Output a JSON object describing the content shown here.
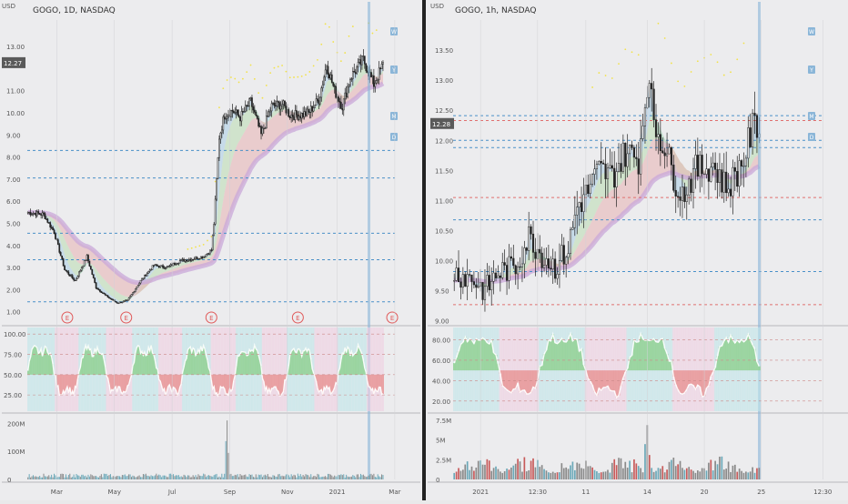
{
  "colors": {
    "background": "#ececee",
    "divider": "#222222",
    "candle": "#222222",
    "axis_text": "#555555",
    "dashed_blue": "#4a90c8",
    "dashed_red": "#e07070",
    "dashed_green": "#7ab87a",
    "ribbon_blue": "#a9cde6",
    "ribbon_green": "#b9dcb0",
    "ribbon_red": "#e8b3b3",
    "ribbon_purple": "#c9a8d8",
    "yellow_dots": "#f2e24a",
    "osc_green": "#8fcf8f",
    "osc_red": "#e79292",
    "osc_cyan": "#bfe6ea",
    "osc_line": "#ffffff",
    "earnings_marker": "#e05a5a",
    "price_label_bg": "#5a5a5a",
    "price_label_text": "#ffffff",
    "badge_blue": "#8bb6d8"
  },
  "chart_data": [
    {
      "type": "candlestick",
      "symbol_title": "GOGO, 1D, NASDAQ",
      "currency": "USD",
      "price_ticks": [
        "13.00",
        "12.00",
        "11.00",
        "10.00",
        "9.00",
        "8.00",
        "7.00",
        "6.00",
        "5.00",
        "4.00",
        "3.00",
        "2.00",
        "1.00"
      ],
      "price_tick_values": [
        13,
        12,
        11,
        10,
        9,
        8,
        7,
        6,
        5,
        4,
        3,
        2,
        1
      ],
      "ylim": [
        0.45,
        14.2
      ],
      "last_price": "12.27",
      "last_price_value": 12.27,
      "time_labels": [
        "Mar",
        "May",
        "Jul",
        "Sep",
        "Nov",
        "2021",
        "Mar"
      ],
      "time_label_index": [
        22,
        66,
        110,
        154,
        198,
        236,
        280
      ],
      "bars_total": 300,
      "bars_with_data": 272,
      "earnings_markers": [
        "E",
        "E",
        "E",
        "E",
        "E"
      ],
      "earnings_index": [
        30,
        75,
        140,
        206,
        278
      ],
      "dashed_levels": [
        8.3,
        7.05,
        4.55,
        3.35,
        1.45
      ],
      "price_anchors": [
        [
          0,
          5.5
        ],
        [
          12,
          5.4
        ],
        [
          20,
          4.6
        ],
        [
          28,
          2.9
        ],
        [
          36,
          2.4
        ],
        [
          45,
          3.5
        ],
        [
          52,
          2.1
        ],
        [
          60,
          1.7
        ],
        [
          68,
          1.4
        ],
        [
          76,
          1.5
        ],
        [
          86,
          2.4
        ],
        [
          96,
          3.1
        ],
        [
          106,
          3.0
        ],
        [
          116,
          3.3
        ],
        [
          126,
          3.4
        ],
        [
          134,
          3.5
        ],
        [
          140,
          3.8
        ],
        [
          142,
          5.0
        ],
        [
          146,
          8.9
        ],
        [
          150,
          9.9
        ],
        [
          156,
          10.1
        ],
        [
          162,
          9.8
        ],
        [
          170,
          10.5
        ],
        [
          178,
          9.0
        ],
        [
          186,
          10.3
        ],
        [
          194,
          10.4
        ],
        [
          200,
          9.9
        ],
        [
          208,
          9.9
        ],
        [
          214,
          10.0
        ],
        [
          222,
          10.6
        ],
        [
          228,
          12.2
        ],
        [
          234,
          11.0
        ],
        [
          240,
          10.3
        ],
        [
          246,
          11.6
        ],
        [
          256,
          12.4
        ],
        [
          264,
          11.3
        ],
        [
          272,
          12.3
        ]
      ],
      "oscillator": {
        "ticks": [
          "100.00",
          "75.00",
          "50.00",
          "25.00"
        ],
        "tick_values": [
          100,
          75,
          50,
          25
        ],
        "ylim": [
          5,
          108
        ]
      },
      "volume": {
        "ticks": [
          "200M",
          "100M",
          "0"
        ],
        "tick_values": [
          200,
          100,
          0
        ],
        "ylim": [
          0,
          230
        ],
        "spike_index": 152,
        "spike_value": 210
      },
      "badges": [
        "W",
        "Y",
        "M",
        "D"
      ]
    },
    {
      "type": "candlestick",
      "symbol_title": "GOGO, 1h, NASDAQ",
      "currency": "USD",
      "price_ticks": [
        "13.50",
        "13.00",
        "12.50",
        "12.00",
        "11.50",
        "11.00",
        "10.50",
        "10.00",
        "9.50",
        "9.00"
      ],
      "price_tick_values": [
        13.5,
        13.0,
        12.5,
        12.0,
        11.5,
        11.0,
        10.5,
        10.0,
        9.5,
        9.0
      ],
      "ylim": [
        8.95,
        14.0
      ],
      "last_price": "12.28",
      "last_price_value": 12.28,
      "time_labels": [
        "2021",
        "12:30",
        "11",
        "14",
        "20",
        "25",
        "12:30"
      ],
      "time_label_index": [
        12,
        38,
        60,
        88,
        114,
        140,
        168
      ],
      "bars_total": 180,
      "bars_with_data": 140,
      "dashed_levels": [
        12.41,
        12.33,
        12.0,
        11.88,
        11.05,
        10.68,
        9.82,
        9.27
      ],
      "price_anchors": [
        [
          0,
          9.8
        ],
        [
          8,
          9.7
        ],
        [
          14,
          9.5
        ],
        [
          20,
          9.8
        ],
        [
          28,
          9.9
        ],
        [
          34,
          10.4
        ],
        [
          40,
          10.1
        ],
        [
          46,
          9.9
        ],
        [
          52,
          10.2
        ],
        [
          56,
          10.9
        ],
        [
          60,
          11.1
        ],
        [
          66,
          11.5
        ],
        [
          72,
          11.4
        ],
        [
          78,
          11.8
        ],
        [
          84,
          11.7
        ],
        [
          88,
          13.0
        ],
        [
          92,
          12.2
        ],
        [
          96,
          11.9
        ],
        [
          100,
          11.4
        ],
        [
          104,
          11.1
        ],
        [
          110,
          11.5
        ],
        [
          118,
          11.6
        ],
        [
          124,
          11.2
        ],
        [
          128,
          11.4
        ],
        [
          132,
          11.7
        ],
        [
          136,
          12.2
        ],
        [
          140,
          12.3
        ]
      ],
      "oscillator": {
        "ticks": [
          "80.00",
          "60.00",
          "40.00",
          "20.00"
        ],
        "tick_values": [
          80,
          60,
          40,
          20
        ],
        "ylim": [
          10,
          92
        ]
      },
      "volume": {
        "ticks": [
          "7.5M",
          "5M",
          "2.5M",
          "0"
        ],
        "tick_values": [
          7.5,
          5,
          2.5,
          0
        ],
        "ylim": [
          0,
          8.2
        ],
        "spike_index": 88,
        "spike_value": 6.9
      },
      "badges": [
        "W",
        "Y",
        "M",
        "D"
      ]
    }
  ]
}
